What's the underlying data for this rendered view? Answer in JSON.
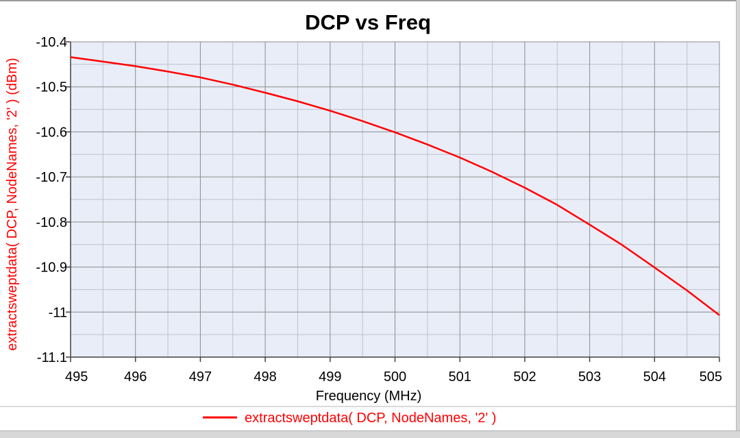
{
  "chart_data": {
    "type": "line",
    "title": "DCP vs Freq",
    "xlabel": "Frequency (MHz)",
    "ylabel": "extractsweptdata( DCP, NodeNames, '2' ) (dBm)",
    "xlim": [
      495,
      505
    ],
    "ylim": [
      -11.1,
      -10.4
    ],
    "xticks": [
      "495",
      "496",
      "497",
      "498",
      "499",
      "500",
      "501",
      "502",
      "503",
      "504",
      "505"
    ],
    "yticks": [
      "-10.4",
      "-10.5",
      "-10.6",
      "-10.7",
      "-10.8",
      "-10.9",
      "-11",
      "-11.1"
    ],
    "grid": true,
    "legend_position": "bottom",
    "series": [
      {
        "name": "extractsweptdata( DCP, NodeNames, '2' )",
        "color": "#ff0000",
        "x": [
          495,
          495.5,
          496,
          496.5,
          497,
          497.5,
          498,
          498.5,
          499,
          499.5,
          500,
          500.5,
          501,
          501.5,
          502,
          502.5,
          503,
          503.5,
          504,
          504.5,
          505
        ],
        "y": [
          -10.434,
          -10.444,
          -10.454,
          -10.466,
          -10.479,
          -10.495,
          -10.513,
          -10.532,
          -10.553,
          -10.576,
          -10.601,
          -10.628,
          -10.657,
          -10.689,
          -10.724,
          -10.762,
          -10.806,
          -10.851,
          -10.901,
          -10.952,
          -11.007
        ]
      }
    ]
  },
  "colors": {
    "series": "#ff0000",
    "plot_background": "#e9edf8",
    "major_grid": "#8c8c8c",
    "minor_grid": "#bcc2cc",
    "ylabel_color": "#ff0000"
  }
}
